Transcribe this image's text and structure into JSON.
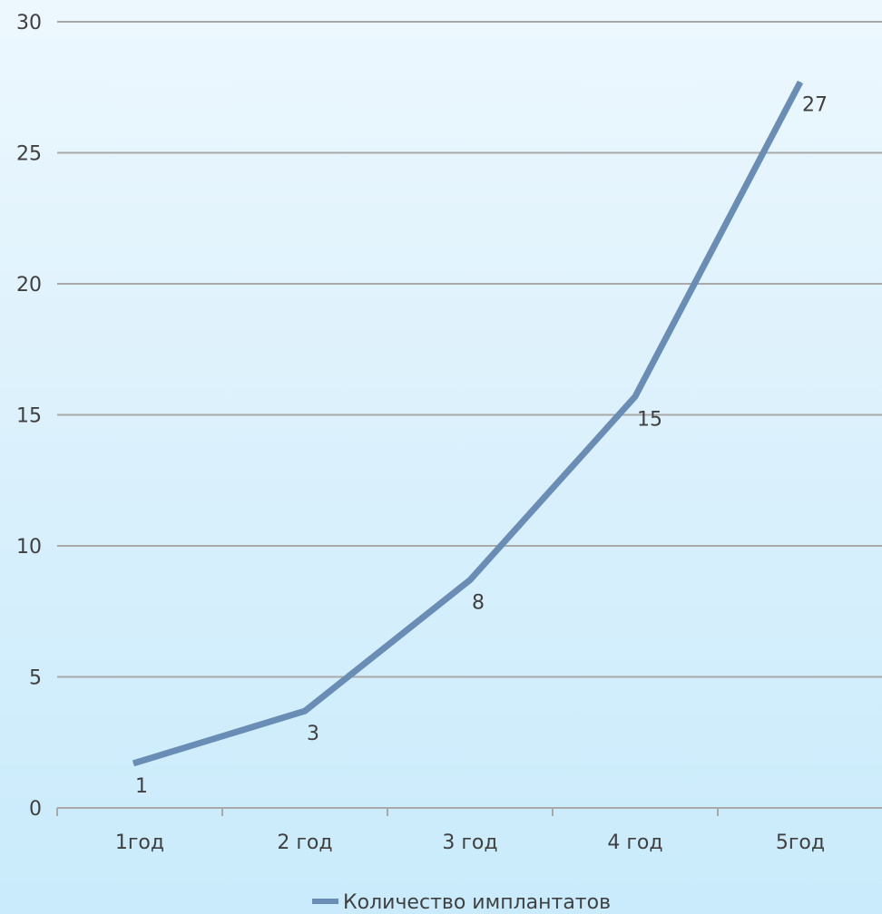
{
  "chart_data": {
    "type": "line",
    "title": "",
    "xlabel": "",
    "ylabel": "",
    "categories": [
      "1год",
      "2 год",
      "3 год",
      "4 год",
      "5год"
    ],
    "series": [
      {
        "name": "Количество имплантатов",
        "values": [
          1,
          3,
          8,
          15,
          27
        ],
        "color": "#6a8db5"
      }
    ],
    "ylim": [
      0,
      30
    ],
    "yticks": [
      "0",
      "5",
      "10",
      "15",
      "20",
      "25",
      "30"
    ],
    "data_labels": [
      "1",
      "3",
      "8",
      "15",
      "27"
    ],
    "grid": true,
    "legend_position": "bottom",
    "colors": {
      "gridline": "#a9a9a9",
      "text": "#404040"
    }
  }
}
